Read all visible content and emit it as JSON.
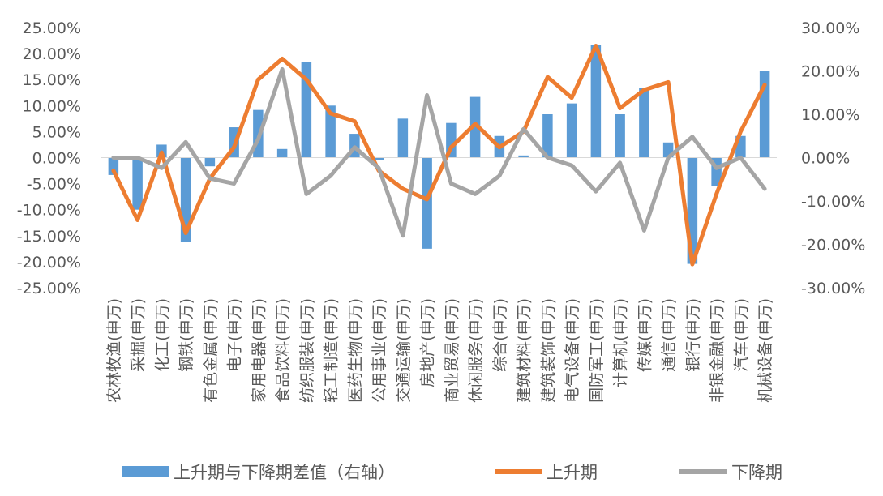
{
  "chart_data": {
    "type": "bar",
    "categories": [
      "农林牧渔(申万)",
      "采掘(申万)",
      "化工(申万)",
      "钢铁(申万)",
      "有色金属(申万)",
      "电子(申万)",
      "家用电器(申万)",
      "食品饮料(申万)",
      "纺织服装(申万)",
      "轻工制造(申万)",
      "医药生物(申万)",
      "公用事业(申万)",
      "交通运输(申万)",
      "房地产(申万)",
      "商业贸易(申万)",
      "休闲服务(申万)",
      "综合(申万)",
      "建筑材料(申万)",
      "建筑装饰(申万)",
      "电气设备(申万)",
      "国防军工(申万)",
      "计算机(申万)",
      "传媒(申万)",
      "通信(申万)",
      "银行(申万)",
      "非银金融(申万)",
      "汽车(申万)",
      "机械设备(申万)"
    ],
    "left_axis": {
      "min": -0.25,
      "max": 0.25,
      "ticks": [
        "25.00%",
        "20.00%",
        "15.00%",
        "10.00%",
        "5.00%",
        "0.00%",
        "-5.00%",
        "-10.00%",
        "-15.00%",
        "-20.00%",
        "-25.00%"
      ]
    },
    "right_axis": {
      "min": -0.3,
      "max": 0.3,
      "ticks": [
        "30.00%",
        "20.00%",
        "10.00%",
        "0.00%",
        "-10.00%",
        "-20.00%",
        "-30.00%"
      ]
    },
    "grid": false,
    "legend_position": "bottom",
    "series": [
      {
        "name": "上升期与下降期差值（右轴）",
        "type": "bar",
        "axis": "right",
        "color": "#5b9bd5",
        "values": [
          -0.04,
          -0.12,
          0.03,
          -0.195,
          -0.02,
          0.07,
          0.11,
          0.02,
          0.22,
          0.12,
          0.055,
          -0.005,
          0.09,
          -0.21,
          0.08,
          0.14,
          0.05,
          0.005,
          0.1,
          0.125,
          0.26,
          0.1,
          0.16,
          0.035,
          -0.245,
          -0.065,
          0.05,
          0.2
        ]
      },
      {
        "name": "上升期",
        "type": "line",
        "axis": "left",
        "color": "#ed7d31",
        "values": [
          -0.025,
          -0.12,
          0.01,
          -0.145,
          -0.04,
          0.02,
          0.15,
          0.19,
          0.15,
          0.085,
          0.07,
          -0.025,
          -0.06,
          -0.08,
          0.02,
          0.065,
          0.02,
          0.05,
          0.155,
          0.115,
          0.215,
          0.095,
          0.13,
          0.145,
          -0.205,
          -0.07,
          0.05,
          0.14
        ]
      },
      {
        "name": "下降期",
        "type": "line",
        "axis": "left",
        "color": "#a5a5a5",
        "values": [
          0.0,
          0.0,
          -0.02,
          0.03,
          -0.04,
          -0.05,
          0.035,
          0.17,
          -0.07,
          -0.035,
          0.02,
          -0.02,
          -0.15,
          0.12,
          -0.05,
          -0.07,
          -0.035,
          0.055,
          0.0,
          -0.015,
          -0.065,
          -0.01,
          -0.14,
          0.0,
          0.04,
          -0.02,
          0.0,
          -0.06
        ]
      }
    ]
  }
}
